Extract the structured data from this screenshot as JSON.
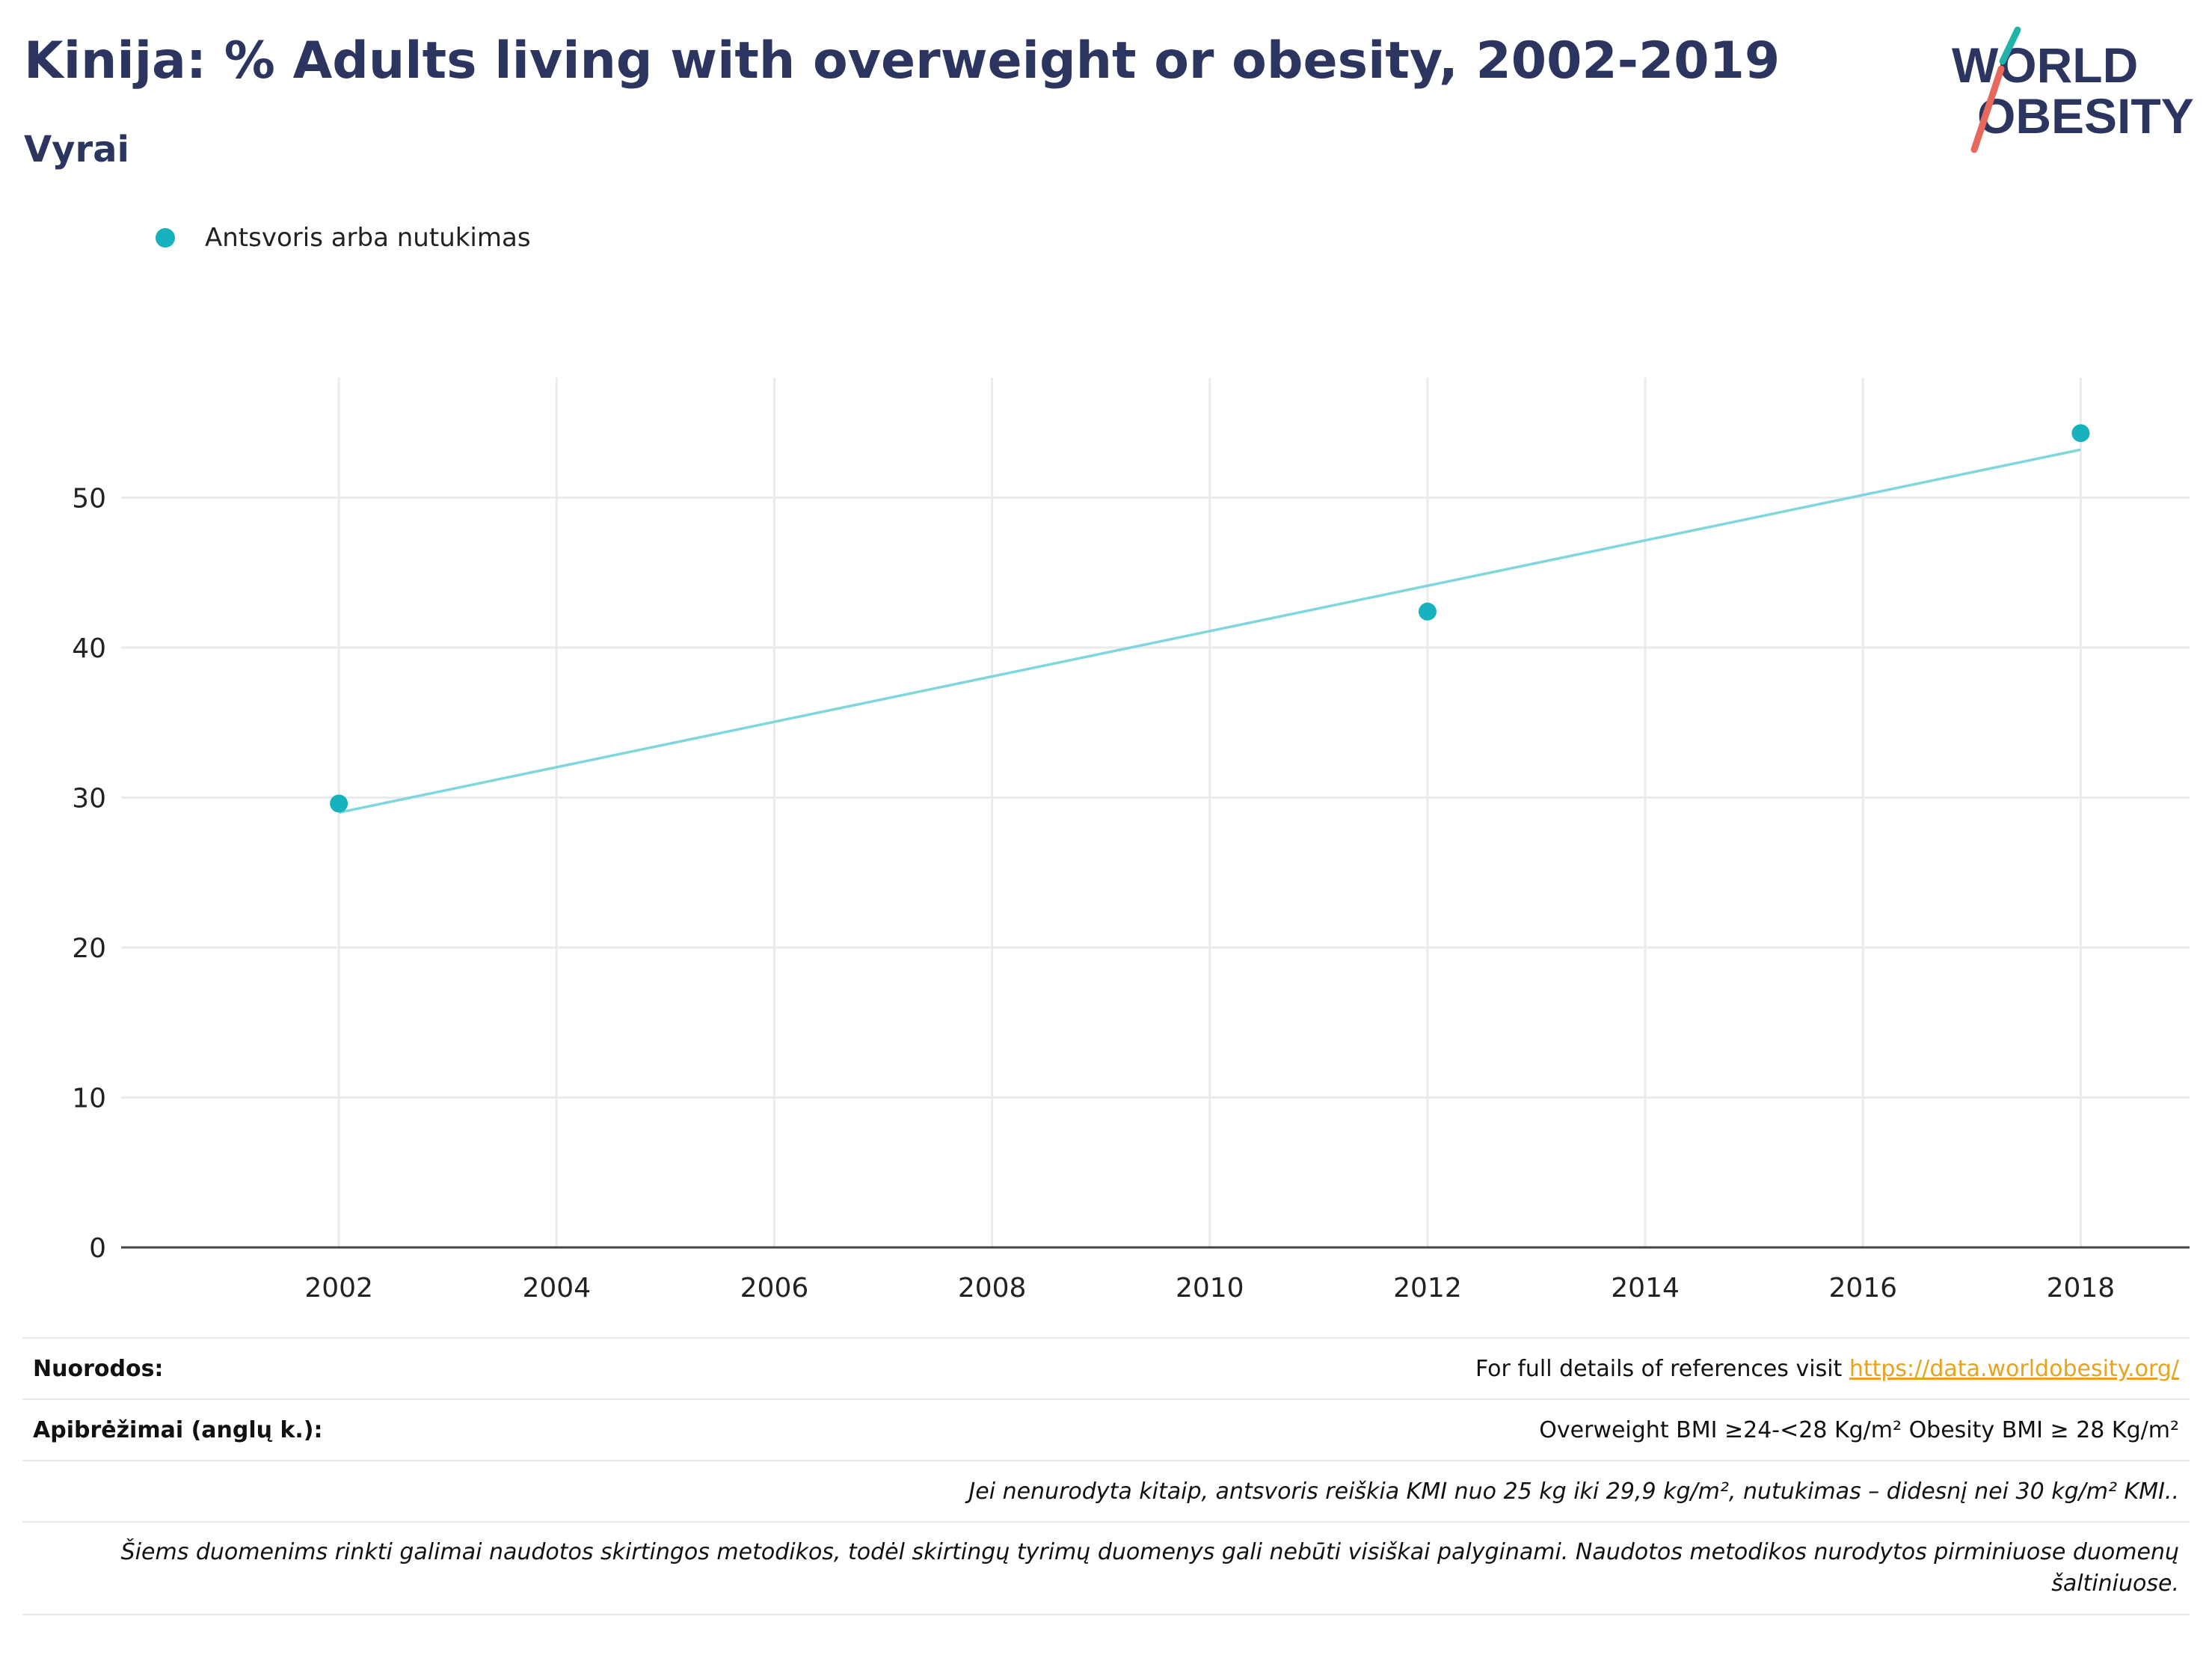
{
  "header": {
    "title": "Kinija: % Adults living with overweight or obesity, 2002-2019",
    "subtitle": "Vyrai"
  },
  "logo": {
    "line1": "WORLD",
    "line2": "OBESITY"
  },
  "colors": {
    "title": "#2b3560",
    "series": "#17b2be",
    "trend": "#7fd6dc",
    "grid": "#ebebef",
    "link": "#e7a31d",
    "logo_teal": "#1fb3aa",
    "logo_coral": "#e8695b"
  },
  "chart_data": {
    "type": "scatter",
    "series": [
      {
        "name": "Antsvoris arba nutukimas",
        "x": [
          2002,
          2012,
          2018
        ],
        "y": [
          29.6,
          42.4,
          54.3
        ]
      }
    ],
    "trendline": {
      "x": [
        2002,
        2018
      ],
      "y": [
        29.0,
        53.2
      ]
    },
    "xlim": [
      2000,
      2019
    ],
    "ylim": [
      0,
      58
    ],
    "xticks": [
      2002,
      2004,
      2006,
      2008,
      2010,
      2012,
      2014,
      2016,
      2018
    ],
    "yticks": [
      0,
      10,
      20,
      30,
      40,
      50
    ],
    "grid": true,
    "legend_position": "top-left"
  },
  "notes": {
    "references_label": "Nuorodos:",
    "references_text": "For full details of references visit ",
    "references_link": "https://data.worldobesity.org/",
    "definitions_label": "Apibrėžimai (anglų k.):",
    "definitions_text": "Overweight BMI ≥24-<28 Kg/m² Obesity BMI ≥ 28 Kg/m²",
    "default_note": "Jei nenurodyta kitaip, antsvoris reiškia KMI nuo 25 kg iki 29,9 kg/m², nutukimas – didesnį nei 30 kg/m² KMI..",
    "methodology_note": "Šiems duomenims rinkti galimai naudotos skirtingos metodikos, todėl skirtingų tyrimų duomenys gali nebūti visiškai palyginami. Naudotos metodikos nurodytos pirminiuose duomenų šaltiniuose."
  }
}
